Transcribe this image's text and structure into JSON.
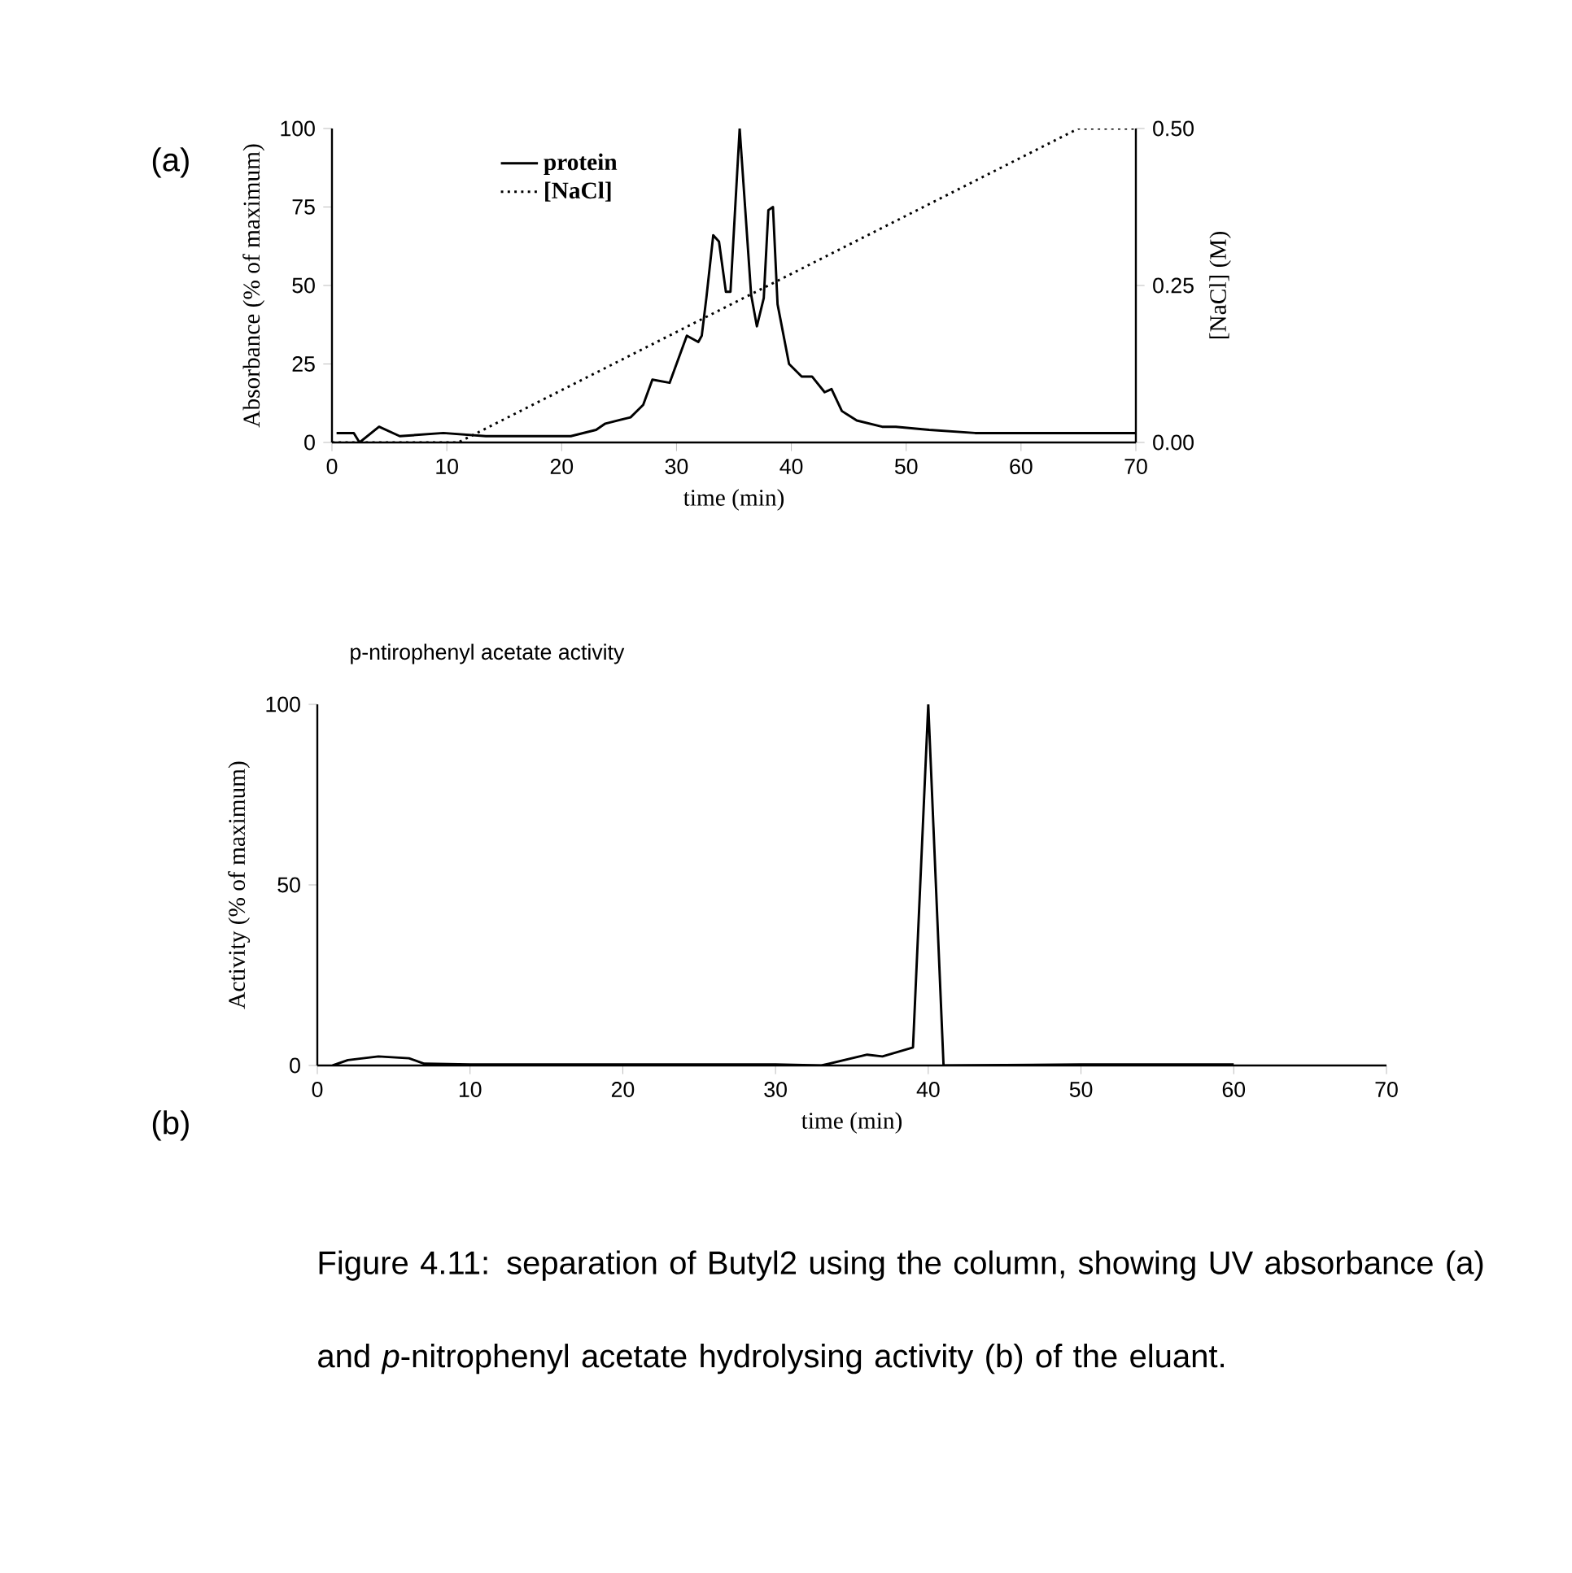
{
  "chart_data": [
    {
      "type": "line",
      "xlabel": "time (min)",
      "ylabel": "Absorbance (% of maximum)",
      "y2label": "[NaCl] (M)",
      "xlim": [
        0,
        70
      ],
      "ylim": [
        0,
        100
      ],
      "y2lim": [
        0,
        0.5
      ],
      "xticks": [
        0,
        10,
        20,
        30,
        40,
        50,
        60,
        70
      ],
      "yticks": [
        0,
        25,
        50,
        75,
        100
      ],
      "y2ticks": [
        {
          "value": 0,
          "label": "0.00"
        },
        {
          "value": 0.25,
          "label": "0.25"
        },
        {
          "value": 0.5,
          "label": "0.50"
        }
      ],
      "legend": "top left",
      "marker": "none",
      "annotations": [
        "(a)"
      ],
      "series": [
        {
          "name": "protein",
          "color": "#000000",
          "line_style": "solid",
          "x": [
            0.4,
            1.9,
            2.4,
            4.1,
            5.9,
            9.7,
            13.4,
            17.8,
            20.8,
            23,
            23.8,
            26,
            27.1,
            27.9,
            29.4,
            30.9,
            31.9,
            32.2,
            32.6,
            33.2,
            33.7,
            34.3,
            34.7,
            35.5,
            36.5,
            37,
            37.6,
            38,
            38.4,
            38.8,
            39.8,
            40.9,
            41.8,
            42.9,
            43.5,
            44.4,
            45.7,
            47.9,
            49.1,
            52,
            56,
            62,
            70
          ],
          "values": [
            3,
            3,
            0,
            5,
            2,
            3,
            2,
            2,
            2,
            4,
            6,
            8,
            12,
            20,
            19,
            34,
            32,
            34,
            46,
            66,
            64,
            48,
            48,
            100,
            47,
            37,
            46,
            74,
            75,
            44,
            25,
            21,
            21,
            16,
            17,
            10,
            7,
            5,
            5,
            4,
            3,
            3,
            3
          ]
        },
        {
          "name": "[NaCl]",
          "color": "#000000",
          "line_style": "dotted",
          "axis": "y2",
          "x": [
            0,
            11,
            65,
            70
          ],
          "values": [
            0,
            0,
            0.5,
            0.5
          ]
        }
      ]
    },
    {
      "type": "line",
      "title": "p-ntirophenyl acetate activity",
      "xlabel": "time (min)",
      "ylabel": "Activity (% of maximum)",
      "xlim": [
        0,
        70
      ],
      "ylim": [
        0,
        100
      ],
      "xticks": [
        0,
        10,
        20,
        30,
        40,
        50,
        60,
        70
      ],
      "yticks": [
        0,
        50,
        100
      ],
      "marker": "none",
      "annotations": [
        "(b)",
        "Figure 4.11: separation of Butyl2 using the column, showing UV absorbance (a) and *p*-nitrophenyl acetate hydrolysing activity (b) of the eluant."
      ],
      "series": [
        {
          "color": "#000000",
          "line_style": "solid",
          "x": [
            1,
            2,
            4,
            6,
            7,
            10,
            20,
            30,
            33,
            36,
            37,
            39,
            40,
            41,
            50,
            60
          ],
          "values": [
            0,
            1.5,
            2.5,
            2,
            0.5,
            0.3,
            0.3,
            0.3,
            0,
            3,
            2.5,
            5,
            100,
            0,
            0.3,
            0.3
          ]
        }
      ]
    }
  ]
}
